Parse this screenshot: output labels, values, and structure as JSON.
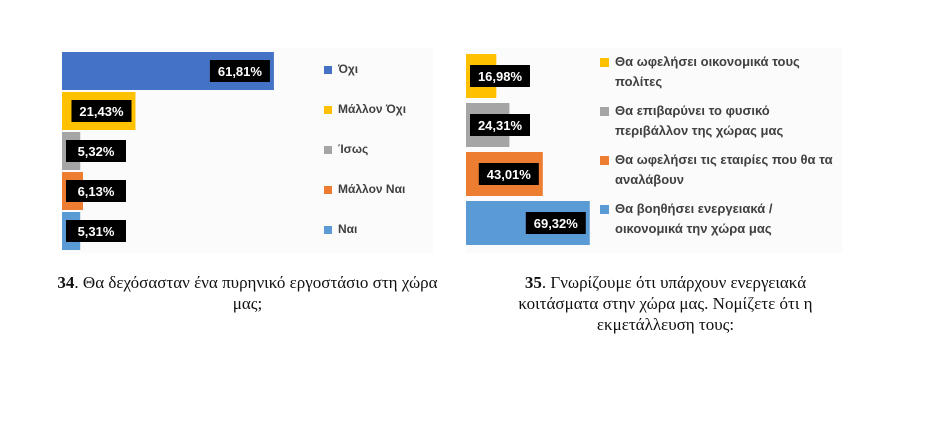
{
  "chart_data": [
    {
      "type": "bar",
      "orientation": "horizontal",
      "categories": [
        "Όχι",
        "Μάλλον Όχι",
        "Ίσως",
        "Μάλλον Ναι",
        "Ναι"
      ],
      "values": [
        61.81,
        21.43,
        5.32,
        6.13,
        5.31
      ],
      "value_labels": [
        "61,81%",
        "21,43%",
        "5,32%",
        "6,13%",
        "5,31%"
      ],
      "colors": [
        "#4472c4",
        "#ffc000",
        "#a5a5a5",
        "#ed7d31",
        "#5b9bd5"
      ],
      "xlim": [
        0,
        70
      ],
      "grid": false,
      "legend": "right",
      "caption_number": "34",
      "caption_text": ". Θα δεχόσασταν ένα πυρηνικό εργοστάσιο στη χώρα μας;"
    },
    {
      "type": "bar",
      "orientation": "horizontal",
      "categories": [
        "Θα ωφελήσει οικονομικά τους πολίτες",
        "Θα επιβαρύνει το φυσικό περιβάλλον της χώρας μας",
        "Θα ωφελήσει τις εταιρίες  που θα τα αναλάβουν",
        "Θα βοηθήσει ενεργειακά / οικονομικά την χώρα μας"
      ],
      "values": [
        16.98,
        24.31,
        43.01,
        69.32
      ],
      "value_labels": [
        "16,98%",
        "24,31%",
        "43,01%",
        "69,32%"
      ],
      "colors": [
        "#ffc000",
        "#a5a5a5",
        "#ed7d31",
        "#5b9bd5"
      ],
      "xlim": [
        0,
        70
      ],
      "grid": false,
      "legend": "right",
      "caption_number": "35",
      "caption_text": ". Γνωρίζουμε ότι υπάρχουν ενεργειακά κοιτάσματα στην χώρα μας.  Νομίζετε ότι η εκμετάλλευση τους:"
    }
  ]
}
